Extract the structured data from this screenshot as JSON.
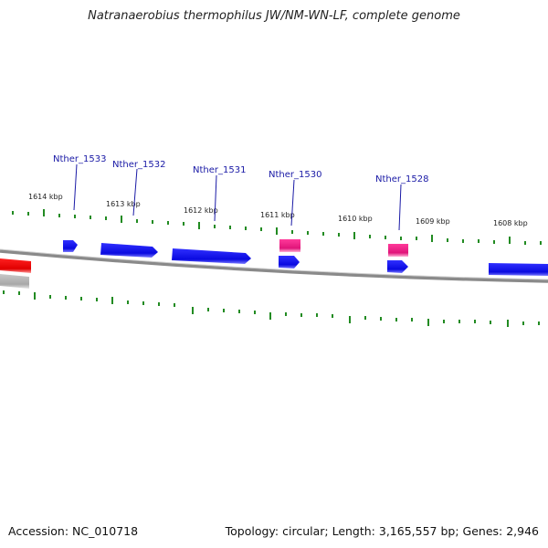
{
  "title": "Natranaerobius thermophilus JW/NM-WN-LF, complete genome",
  "footer": {
    "accession": "Accession: NC_010718",
    "summary": "Topology: circular; Length: 3,165,557 bp; Genes: 2,946"
  },
  "colors": {
    "forward_gene": "#1010e8",
    "pink_gene": "#e8157e",
    "red_gene": "#e80000",
    "grey_gene": "#b0b0b0",
    "ticks": "#228b22",
    "backbone": "#888888",
    "label": "#1a1aa6"
  },
  "scale_labels": [
    "1614 kbp",
    "1613 kbp",
    "1612 kbp",
    "1611 kbp",
    "1610 kbp",
    "1609 kbp",
    "1608 kbp"
  ],
  "gene_labels": [
    "Nther_1533",
    "Nther_1532",
    "Nther_1531",
    "Nther_1530",
    "Nther_1528"
  ]
}
